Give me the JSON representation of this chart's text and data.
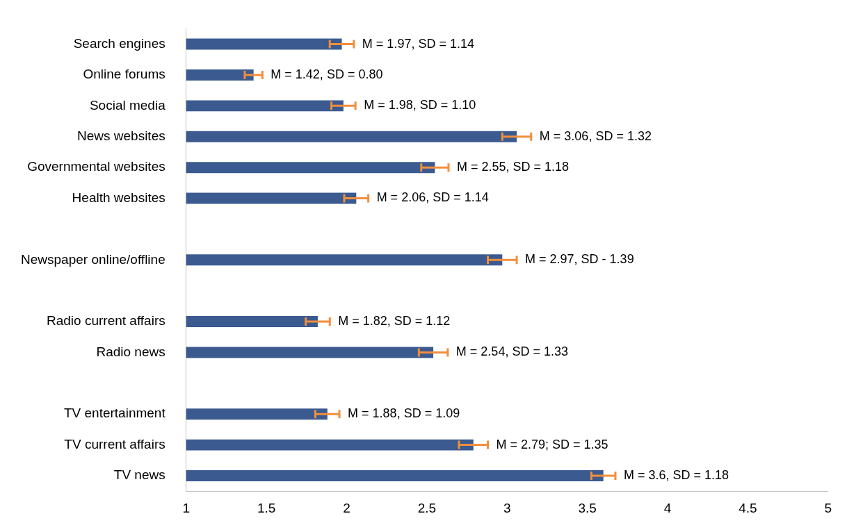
{
  "chart_data": {
    "type": "bar",
    "orientation": "horizontal",
    "categories": [
      "Search engines",
      "Online forums",
      "Social media",
      "News websites",
      "Governmental websites",
      "Health websites",
      null,
      "Newspaper online/offline",
      null,
      "Radio current affairs",
      "Radio news",
      null,
      "TV entertainment",
      "TV current affairs",
      "TV news"
    ],
    "values": [
      1.97,
      1.42,
      1.98,
      3.06,
      2.55,
      2.06,
      null,
      2.97,
      null,
      1.82,
      2.54,
      null,
      1.88,
      2.79,
      3.6
    ],
    "errors": [
      0.075,
      0.055,
      0.075,
      0.09,
      0.085,
      0.075,
      null,
      0.09,
      null,
      0.075,
      0.09,
      null,
      0.075,
      0.09,
      0.075
    ],
    "value_labels": [
      "M = 1.97, SD = 1.14",
      "M = 1.42, SD = 0.80",
      "M = 1.98, SD = 1.10",
      "M = 3.06, SD = 1.32",
      "M = 2.55, SD = 1.18",
      "M = 2.06, SD = 1.14",
      null,
      "M = 2.97, SD - 1.39",
      null,
      "M = 1.82, SD = 1.12",
      "M = 2.54, SD = 1.33",
      null,
      "M = 1.88, SD = 1.09",
      "M = 2.79; SD = 1.35",
      "M = 3.6, SD = 1.18"
    ],
    "color": "#3b5a8f",
    "xlim": [
      1,
      5
    ],
    "xticks": [
      1,
      1.5,
      2,
      2.5,
      3,
      3.5,
      4,
      4.5,
      5
    ],
    "grid": false,
    "legend": false
  }
}
